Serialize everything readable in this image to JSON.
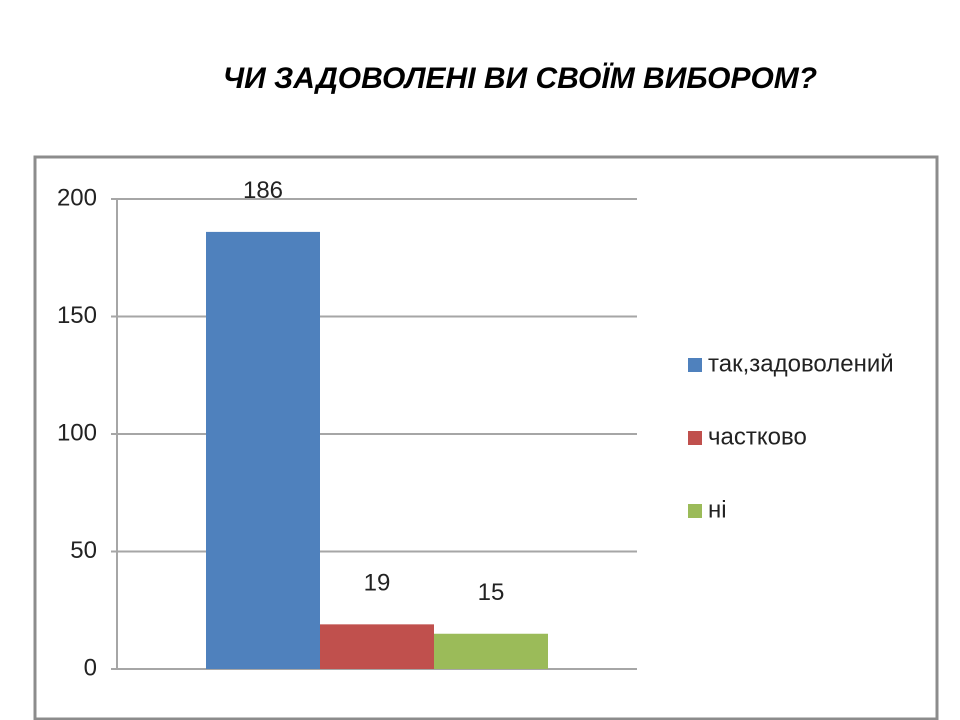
{
  "chart_data": {
    "type": "bar",
    "title": "ЧИ ЗАДОВОЛЕНІ ВИ СВОЇМ ВИБОРОМ?",
    "categories": [
      null
    ],
    "series": [
      {
        "name": "так,задоволений",
        "color": "#4f81bd",
        "values": [
          186
        ]
      },
      {
        "name": "частково",
        "color": "#c0504d",
        "values": [
          19
        ]
      },
      {
        "name": "ні",
        "color": "#9bbb59",
        "values": [
          15
        ]
      }
    ],
    "ylim": [
      0,
      200
    ],
    "yticks": [
      0,
      50,
      100,
      150,
      200
    ],
    "grid": true,
    "legend": "right"
  }
}
